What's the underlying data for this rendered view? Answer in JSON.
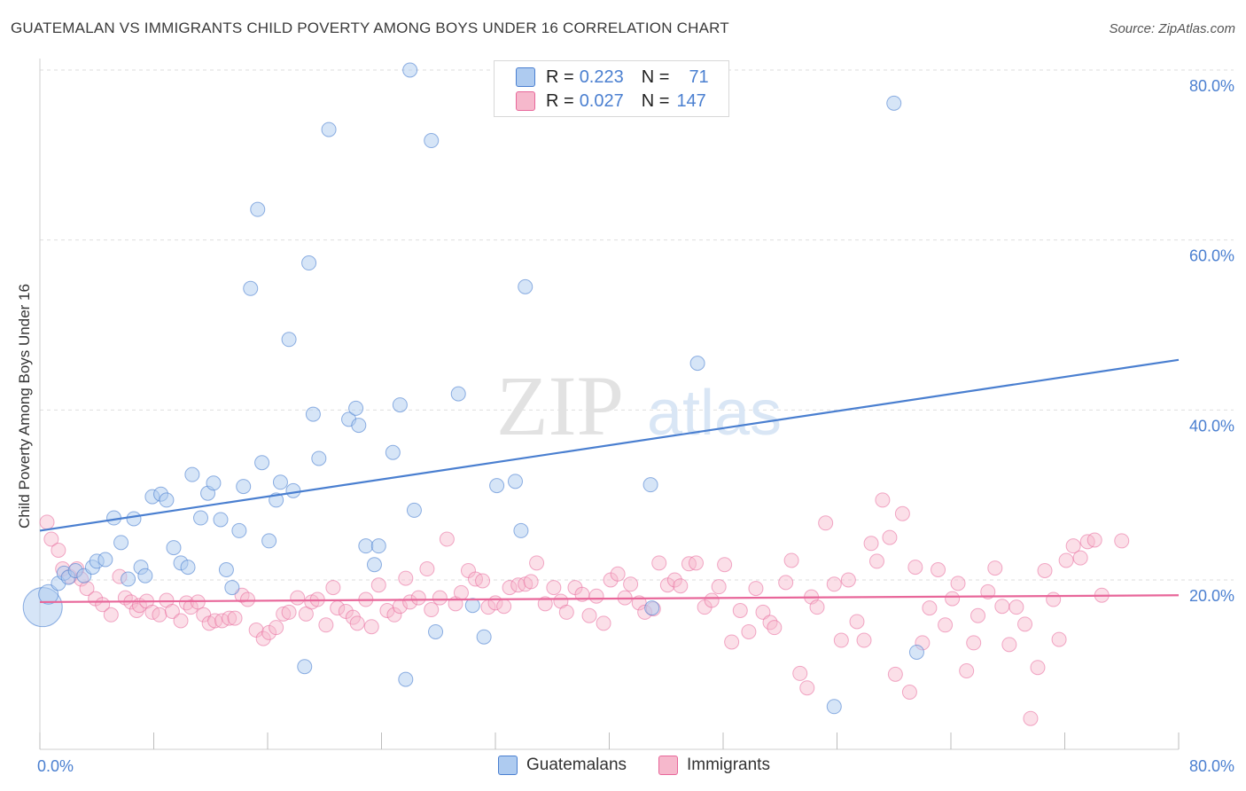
{
  "header": {
    "title": "GUATEMALAN VS IMMIGRANTS CHILD POVERTY AMONG BOYS UNDER 16 CORRELATION CHART",
    "source": "Source: ZipAtlas.com"
  },
  "legend": {
    "items": [
      {
        "r_label": "R =",
        "r_value": "0.223",
        "n_label": "N =",
        "n_value": "71"
      },
      {
        "r_label": "R =",
        "r_value": "0.027",
        "n_label": "N =",
        "n_value": "147"
      }
    ]
  },
  "bottom_legend": {
    "series_a": "Guatemalans",
    "series_b": "Immigrants"
  },
  "watermark": {
    "zip": "ZIP",
    "atlas": "atlas"
  },
  "colors": {
    "blue": "#4a7fd0",
    "blue_fill": "#aecbf0",
    "pink": "#e8679a",
    "pink_fill": "#f6b8cc",
    "grid": "#dedede",
    "tick_text": "#4a7fd0"
  },
  "chart_data": {
    "type": "scatter",
    "title": "GUATEMALAN VS IMMIGRANTS CHILD POVERTY AMONG BOYS UNDER 16 CORRELATION CHART",
    "xlabel": "",
    "ylabel": "Child Poverty Among Boys Under 16",
    "xlim": [
      0,
      80
    ],
    "ylim": [
      0,
      82
    ],
    "x_tick_labels": [
      "0.0%",
      "80.0%"
    ],
    "y_ticks": [
      20,
      40,
      60,
      80
    ],
    "y_tick_labels": [
      "20.0%",
      "40.0%",
      "60.0%",
      "80.0%"
    ],
    "series": [
      {
        "name": "Guatemalans",
        "r": 0.223,
        "n": 71,
        "trend": [
          [
            0,
            25.8
          ],
          [
            80,
            45.9
          ]
        ],
        "points": [
          [
            0.2,
            16.8,
            22
          ],
          [
            0.6,
            18.3,
            11
          ],
          [
            1.3,
            19.6,
            8
          ],
          [
            1.7,
            20.8,
            8
          ],
          [
            2.0,
            20.3,
            8
          ],
          [
            2.5,
            21.1,
            8
          ],
          [
            3.1,
            20.5,
            8
          ],
          [
            3.7,
            21.5,
            8
          ],
          [
            4.0,
            22.2,
            8
          ],
          [
            4.6,
            22.4,
            8
          ],
          [
            5.2,
            27.3,
            8
          ],
          [
            5.7,
            24.4,
            8
          ],
          [
            6.2,
            20.1,
            8
          ],
          [
            6.6,
            27.2,
            8
          ],
          [
            7.1,
            21.5,
            8
          ],
          [
            7.4,
            20.5,
            8
          ],
          [
            7.9,
            29.8,
            8
          ],
          [
            8.5,
            30.1,
            8
          ],
          [
            8.9,
            29.4,
            8
          ],
          [
            9.4,
            23.8,
            8
          ],
          [
            9.9,
            22.0,
            8
          ],
          [
            10.4,
            21.5,
            8
          ],
          [
            10.7,
            32.4,
            8
          ],
          [
            11.3,
            27.3,
            8
          ],
          [
            11.8,
            30.2,
            8
          ],
          [
            12.2,
            31.4,
            8
          ],
          [
            12.7,
            27.1,
            8
          ],
          [
            13.1,
            21.2,
            8
          ],
          [
            13.5,
            19.1,
            8
          ],
          [
            14.0,
            25.8,
            8
          ],
          [
            14.3,
            31.0,
            8
          ],
          [
            14.8,
            54.3,
            8
          ],
          [
            15.3,
            63.6,
            8
          ],
          [
            15.6,
            33.8,
            8
          ],
          [
            16.1,
            24.6,
            8
          ],
          [
            16.6,
            29.4,
            8
          ],
          [
            16.9,
            31.5,
            8
          ],
          [
            17.5,
            48.3,
            8
          ],
          [
            17.8,
            30.5,
            8
          ],
          [
            18.6,
            9.8,
            8
          ],
          [
            18.9,
            57.3,
            8
          ],
          [
            19.2,
            39.5,
            8
          ],
          [
            19.6,
            34.3,
            8
          ],
          [
            20.3,
            73.0,
            8
          ],
          [
            21.7,
            38.9,
            8
          ],
          [
            22.2,
            40.2,
            8
          ],
          [
            22.4,
            38.2,
            8
          ],
          [
            22.9,
            24.0,
            8
          ],
          [
            23.5,
            21.8,
            8
          ],
          [
            23.8,
            24.0,
            8
          ],
          [
            24.8,
            35.0,
            8
          ],
          [
            25.3,
            40.6,
            8
          ],
          [
            25.7,
            8.3,
            8
          ],
          [
            26.0,
            80.0,
            8
          ],
          [
            26.3,
            28.2,
            8
          ],
          [
            27.5,
            71.7,
            8
          ],
          [
            27.8,
            13.9,
            8
          ],
          [
            29.4,
            41.9,
            8
          ],
          [
            30.4,
            17.0,
            8
          ],
          [
            31.2,
            13.3,
            8
          ],
          [
            32.1,
            31.1,
            8
          ],
          [
            33.4,
            31.6,
            8
          ],
          [
            33.8,
            25.8,
            8
          ],
          [
            34.1,
            54.5,
            8
          ],
          [
            42.9,
            31.2,
            8
          ],
          [
            43.0,
            16.7,
            8
          ],
          [
            46.2,
            45.5,
            8
          ],
          [
            55.8,
            5.1,
            8
          ],
          [
            60.0,
            76.1,
            8
          ],
          [
            61.6,
            11.5,
            8
          ]
        ]
      },
      {
        "name": "Immigrants",
        "r": 0.027,
        "n": 147,
        "trend": [
          [
            0,
            17.4
          ],
          [
            80,
            18.2
          ]
        ],
        "points": [
          [
            0.5,
            26.8
          ],
          [
            0.8,
            24.8
          ],
          [
            1.3,
            23.5
          ],
          [
            1.6,
            21.3
          ],
          [
            2.1,
            20.4
          ],
          [
            2.6,
            21.3
          ],
          [
            2.9,
            20.1
          ],
          [
            3.3,
            19.0
          ],
          [
            3.9,
            17.8
          ],
          [
            4.4,
            17.1
          ],
          [
            5.0,
            15.9
          ],
          [
            5.6,
            20.4
          ],
          [
            6.0,
            17.9
          ],
          [
            6.4,
            17.4
          ],
          [
            6.8,
            16.4
          ],
          [
            7.0,
            17.0
          ],
          [
            7.5,
            17.5
          ],
          [
            7.9,
            16.2
          ],
          [
            8.4,
            15.9
          ],
          [
            8.9,
            17.6
          ],
          [
            9.3,
            16.3
          ],
          [
            9.9,
            15.2
          ],
          [
            10.3,
            17.3
          ],
          [
            10.6,
            16.8
          ],
          [
            11.1,
            17.4
          ],
          [
            11.5,
            15.9
          ],
          [
            11.9,
            14.9
          ],
          [
            12.3,
            15.2
          ],
          [
            12.8,
            15.2
          ],
          [
            13.3,
            15.5
          ],
          [
            13.7,
            15.5
          ],
          [
            14.2,
            18.2
          ],
          [
            14.6,
            17.7
          ],
          [
            15.2,
            14.1
          ],
          [
            15.7,
            13.1
          ],
          [
            16.1,
            13.8
          ],
          [
            16.6,
            14.4
          ],
          [
            17.1,
            16.0
          ],
          [
            17.5,
            16.2
          ],
          [
            18.1,
            17.9
          ],
          [
            18.7,
            16.0
          ],
          [
            19.1,
            17.4
          ],
          [
            19.5,
            17.7
          ],
          [
            20.1,
            14.7
          ],
          [
            20.6,
            19.1
          ],
          [
            20.9,
            16.7
          ],
          [
            21.5,
            16.3
          ],
          [
            22.0,
            15.6
          ],
          [
            22.3,
            14.9
          ],
          [
            22.9,
            17.7
          ],
          [
            23.3,
            14.5
          ],
          [
            23.8,
            19.4
          ],
          [
            24.4,
            16.4
          ],
          [
            24.9,
            15.9
          ],
          [
            25.3,
            16.9
          ],
          [
            25.7,
            20.2
          ],
          [
            26.0,
            17.4
          ],
          [
            26.6,
            17.9
          ],
          [
            27.2,
            21.3
          ],
          [
            27.5,
            16.5
          ],
          [
            28.1,
            17.9
          ],
          [
            28.6,
            24.8
          ],
          [
            29.2,
            17.2
          ],
          [
            29.6,
            18.5
          ],
          [
            30.1,
            21.1
          ],
          [
            30.6,
            20.1
          ],
          [
            31.1,
            19.9
          ],
          [
            31.5,
            16.8
          ],
          [
            32.0,
            17.3
          ],
          [
            32.6,
            16.9
          ],
          [
            33.0,
            19.1
          ],
          [
            33.6,
            19.4
          ],
          [
            34.1,
            19.5
          ],
          [
            34.5,
            19.8
          ],
          [
            34.9,
            22.0
          ],
          [
            35.5,
            17.2
          ],
          [
            36.1,
            19.1
          ],
          [
            36.6,
            17.5
          ],
          [
            37.0,
            16.2
          ],
          [
            37.6,
            19.1
          ],
          [
            38.1,
            18.3
          ],
          [
            38.6,
            15.8
          ],
          [
            39.1,
            18.1
          ],
          [
            39.6,
            14.9
          ],
          [
            40.1,
            20.0
          ],
          [
            40.6,
            20.7
          ],
          [
            41.1,
            17.9
          ],
          [
            41.5,
            19.5
          ],
          [
            42.1,
            17.3
          ],
          [
            42.5,
            16.2
          ],
          [
            43.1,
            16.6
          ],
          [
            43.5,
            22.0
          ],
          [
            44.1,
            19.4
          ],
          [
            44.6,
            20.0
          ],
          [
            45.0,
            19.3
          ],
          [
            45.6,
            21.9
          ],
          [
            46.1,
            22.0
          ],
          [
            46.7,
            16.8
          ],
          [
            47.2,
            17.6
          ],
          [
            47.7,
            19.2
          ],
          [
            48.1,
            21.8
          ],
          [
            48.6,
            12.7
          ],
          [
            49.2,
            16.4
          ],
          [
            49.8,
            13.9
          ],
          [
            50.3,
            19.0
          ],
          [
            50.8,
            16.2
          ],
          [
            51.3,
            15.0
          ],
          [
            51.6,
            14.4
          ],
          [
            52.4,
            19.7
          ],
          [
            52.8,
            22.3
          ],
          [
            53.4,
            9.0
          ],
          [
            53.9,
            7.3
          ],
          [
            54.2,
            18.0
          ],
          [
            54.6,
            16.8
          ],
          [
            55.2,
            26.7
          ],
          [
            55.8,
            19.5
          ],
          [
            56.3,
            12.9
          ],
          [
            56.8,
            20.0
          ],
          [
            57.4,
            15.1
          ],
          [
            57.9,
            12.9
          ],
          [
            58.4,
            24.3
          ],
          [
            58.8,
            22.2
          ],
          [
            59.2,
            29.4
          ],
          [
            59.7,
            25.0
          ],
          [
            60.1,
            8.9
          ],
          [
            60.6,
            27.8
          ],
          [
            61.1,
            6.8
          ],
          [
            61.5,
            21.5
          ],
          [
            62.0,
            12.6
          ],
          [
            62.5,
            16.7
          ],
          [
            63.1,
            21.2
          ],
          [
            63.6,
            14.7
          ],
          [
            64.1,
            17.8
          ],
          [
            64.5,
            19.6
          ],
          [
            65.1,
            9.3
          ],
          [
            65.6,
            12.6
          ],
          [
            65.9,
            15.8
          ],
          [
            66.6,
            18.6
          ],
          [
            67.1,
            21.4
          ],
          [
            67.6,
            16.9
          ],
          [
            68.1,
            12.4
          ],
          [
            68.6,
            16.8
          ],
          [
            69.2,
            14.8
          ],
          [
            69.6,
            3.7
          ],
          [
            70.1,
            9.7
          ],
          [
            70.6,
            21.1
          ],
          [
            71.2,
            17.7
          ],
          [
            71.6,
            13.0
          ],
          [
            72.1,
            22.3
          ],
          [
            72.6,
            24.0
          ],
          [
            73.1,
            22.6
          ],
          [
            73.6,
            24.5
          ],
          [
            74.1,
            24.7
          ],
          [
            74.6,
            18.2
          ],
          [
            76.0,
            24.6
          ]
        ]
      }
    ]
  }
}
